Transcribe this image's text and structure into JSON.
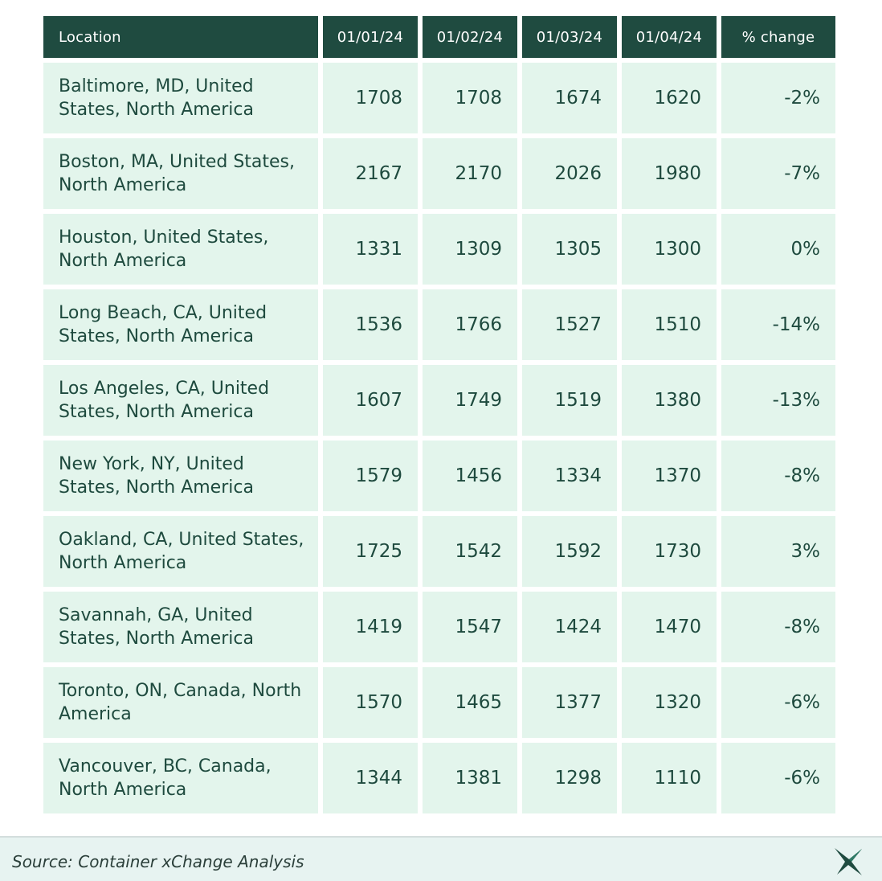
{
  "chart_data": {
    "type": "table",
    "columns": [
      "Location",
      "01/01/24",
      "01/02/24",
      "01/03/24",
      "01/04/24",
      "% change"
    ],
    "rows": [
      {
        "location": "Baltimore, MD, United States, North America",
        "values": [
          "1708",
          "1708",
          "1674",
          "1620"
        ],
        "change": "-2%"
      },
      {
        "location": "Boston, MA, United States, North America",
        "values": [
          "2167",
          "2170",
          "2026",
          "1980"
        ],
        "change": "-7%"
      },
      {
        "location": "Houston, United States, North America",
        "values": [
          "1331",
          "1309",
          "1305",
          "1300"
        ],
        "change": "0%"
      },
      {
        "location": "Long Beach, CA, United States, North America",
        "values": [
          "1536",
          "1766",
          "1527",
          "1510"
        ],
        "change": "-14%"
      },
      {
        "location": "Los Angeles, CA, United States, North America",
        "values": [
          "1607",
          "1749",
          "1519",
          "1380"
        ],
        "change": "-13%"
      },
      {
        "location": "New York, NY, United States, North America",
        "values": [
          "1579",
          "1456",
          "1334",
          "1370"
        ],
        "change": "-8%"
      },
      {
        "location": "Oakland, CA, United States, North America",
        "values": [
          "1725",
          "1542",
          "1592",
          "1730"
        ],
        "change": "3%"
      },
      {
        "location": "Savannah, GA, United States, North America",
        "values": [
          "1419",
          "1547",
          "1424",
          "1470"
        ],
        "change": "-8%"
      },
      {
        "location": "Toronto, ON, Canada, North America",
        "values": [
          "1570",
          "1465",
          "1377",
          "1320"
        ],
        "change": "-6%"
      },
      {
        "location": "Vancouver, BC, Canada, North America",
        "values": [
          "1344",
          "1381",
          "1298",
          "1110"
        ],
        "change": "-6%"
      }
    ]
  },
  "footer": {
    "source": "Source: Container xChange Analysis",
    "logo_icon": "xchange-logo-icon"
  },
  "colors": {
    "header_bg": "#1f4b40",
    "header_text": "#ffffff",
    "cell_bg": "#e3f5ec",
    "text": "#1e4a3e",
    "footer_bg": "#e7f3f1"
  }
}
